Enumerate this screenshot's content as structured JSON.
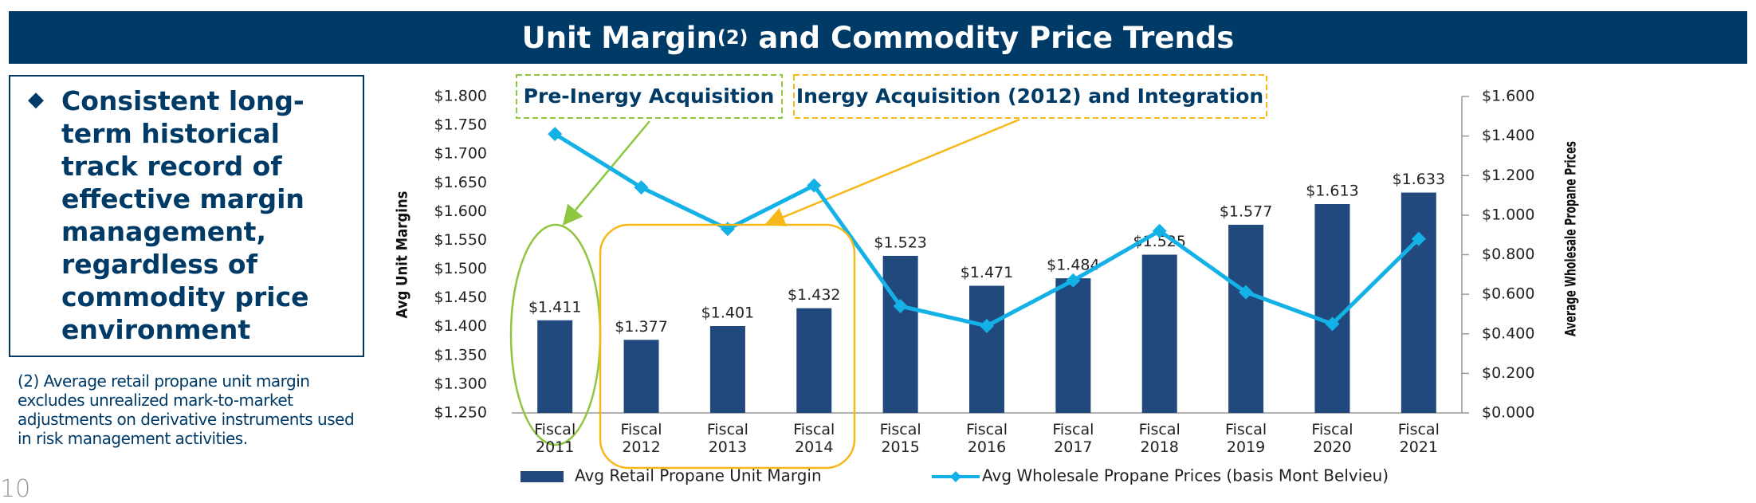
{
  "header": {
    "title": "Unit Margin",
    "title_sup": "(2)",
    "title_rest": "and Commodity Price Trends"
  },
  "bullet": "Consistent long-term historical track record of effective margin management, regardless of commodity price environment",
  "footnote": "(2) Average retail propane unit margin excludes unrealized mark-to-market adjustments on derivative instruments used in risk management activities.",
  "page_number": "10",
  "chart_data": {
    "type": "bar",
    "categories": [
      "Fiscal 2011",
      "Fiscal 2012",
      "Fiscal 2013",
      "Fiscal 2014",
      "Fiscal 2015",
      "Fiscal 2016",
      "Fiscal 2017",
      "Fiscal 2018",
      "Fiscal 2019",
      "Fiscal 2020",
      "Fiscal 2021"
    ],
    "y_label": "Avg Unit Margins",
    "y2_label": "Average Wholesale Propane Prices",
    "series": [
      {
        "name": "Avg Retail Propane Unit Margin",
        "type": "bar",
        "color": "#22497e",
        "values": [
          1.411,
          1.377,
          1.401,
          1.432,
          1.523,
          1.471,
          1.484,
          1.525,
          1.577,
          1.613,
          1.633
        ],
        "value_labels": [
          "$1.411",
          "$1.377",
          "$1.401",
          "$1.432",
          "$1.523",
          "$1.471",
          "$1.484",
          "$1.525",
          "$1.577",
          "$1.613",
          "$1.633"
        ]
      },
      {
        "name": "Avg Wholesale Propane Prices (basis Mont Belvieu)",
        "type": "line",
        "axis": "y2",
        "color": "#14b1e7",
        "values": [
          1.41,
          1.14,
          0.93,
          1.15,
          0.54,
          0.44,
          0.67,
          0.92,
          0.61,
          0.45,
          0.88
        ]
      }
    ],
    "ylim": [
      1.25,
      1.8
    ],
    "yticks": [
      {
        "value": 1.25,
        "label": "$1.250"
      },
      {
        "value": 1.3,
        "label": "$1.300"
      },
      {
        "value": 1.35,
        "label": "$1.350"
      },
      {
        "value": 1.4,
        "label": "$1.400"
      },
      {
        "value": 1.45,
        "label": "$1.450"
      },
      {
        "value": 1.5,
        "label": "$1.500"
      },
      {
        "value": 1.55,
        "label": "$1.550"
      },
      {
        "value": 1.6,
        "label": "$1.600"
      },
      {
        "value": 1.65,
        "label": "$1.650"
      },
      {
        "value": 1.7,
        "label": "$1.700"
      },
      {
        "value": 1.75,
        "label": "$1.750"
      },
      {
        "value": 1.8,
        "label": "$1.800"
      }
    ],
    "y2lim": [
      0,
      1.6
    ],
    "y2ticks": [
      {
        "value": 0,
        "label": "$0.000"
      },
      {
        "value": 0.2,
        "label": "$0.200"
      },
      {
        "value": 0.4,
        "label": "$0.400"
      },
      {
        "value": 0.6,
        "label": "$0.600"
      },
      {
        "value": 0.8,
        "label": "$0.800"
      },
      {
        "value": 1,
        "label": "$1.000"
      },
      {
        "value": 1.2,
        "label": "$1.200"
      },
      {
        "value": 1.4,
        "label": "$1.400"
      },
      {
        "value": 1.6,
        "label": "$1.600"
      }
    ],
    "grid": false,
    "legend": "bottom",
    "annotations": [
      "Pre-Inergy Acquisition",
      "Inergy Acquisition (2012) and Integration"
    ]
  }
}
